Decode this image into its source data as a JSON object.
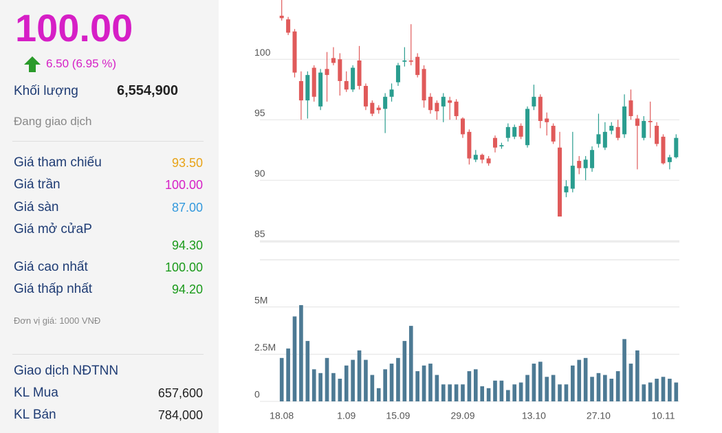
{
  "panel": {
    "price": "100.00",
    "change": "6.50 (6.95 %)",
    "volume_label": "Khối lượng",
    "volume": "6,554,900",
    "status": "Đang giao dịch",
    "prices": [
      {
        "label": "Giá tham chiếu",
        "value": "93.50",
        "color": "#e8a317"
      },
      {
        "label": "Giá trần",
        "value": "100.00",
        "color": "#d61fc6"
      },
      {
        "label": "Giá sàn",
        "value": "87.00",
        "color": "#3399dd"
      },
      {
        "label": "Giá mở cửaP",
        "value": "94.30",
        "color": "#1a9a1a"
      },
      {
        "label": "Giá cao nhất",
        "value": "100.00",
        "color": "#1a9a1a"
      },
      {
        "label": "Giá thấp nhất",
        "value": "94.20",
        "color": "#1a9a1a"
      }
    ],
    "unit_note": "Đơn vị giá: 1000 VNĐ",
    "foreign_title": "Giao dịch NĐTNN",
    "foreign": [
      {
        "label": "KL Mua",
        "value": "657,600"
      },
      {
        "label": "KL Bán",
        "value": "784,000"
      }
    ]
  },
  "chart_data": [
    {
      "type": "candlestick",
      "open": [
        103.6,
        103.3,
        102.3,
        98.2,
        96.6,
        99.3,
        96.1,
        99.2,
        100.1,
        100,
        98.2,
        97.5,
        99.9,
        97.8,
        96.4,
        96,
        95.9,
        96.9,
        98.1,
        99.8,
        99.9,
        100.2,
        99.2,
        96.9,
        96.4,
        96.1,
        96.6,
        96.5,
        95.1,
        94,
        91.7,
        92.1,
        91.8,
        93.5,
        92.8,
        93.5,
        93.6,
        94.5,
        92.9,
        96.1,
        96.9,
        95.1,
        94.5,
        92.7,
        89.0,
        89.3,
        91.6,
        91,
        91,
        93,
        92.7,
        94.1,
        94.4,
        93.8,
        96.6,
        95.1,
        93.5,
        94.9,
        94.5,
        93.6,
        91.5,
        91.9
      ],
      "high": [
        105,
        103.5,
        102.5,
        99,
        99,
        99.5,
        99.2,
        100.6,
        101,
        100.5,
        99,
        99.5,
        101.1,
        98,
        96.6,
        96.2,
        97.2,
        98,
        99.7,
        101,
        102.9,
        100.5,
        99.5,
        97.2,
        96.6,
        97.2,
        96.9,
        96.7,
        95.2,
        94.2,
        92.5,
        92.2,
        92,
        93.7,
        93.1,
        94.7,
        94.6,
        94.7,
        96.1,
        97.9,
        97.1,
        95.6,
        94.7,
        94,
        90,
        94,
        92,
        92,
        92.8,
        95.5,
        94.8,
        94.8,
        95,
        97.1,
        97.5,
        95.4,
        95.3,
        96.5,
        94.8,
        93.8,
        92.1,
        93.8
      ],
      "low": [
        103.2,
        102,
        98.5,
        95,
        95.1,
        96.5,
        95.8,
        96.5,
        99.5,
        97,
        97.3,
        97.3,
        97.5,
        95.8,
        95.3,
        95.5,
        93.9,
        96.5,
        97.8,
        99.4,
        99.5,
        98.5,
        96,
        95.5,
        95,
        94.8,
        95,
        95,
        93.5,
        91.3,
        91.5,
        91.4,
        91.2,
        92.3,
        92.6,
        93.2,
        93.4,
        93.4,
        92.7,
        95.8,
        94.3,
        93.7,
        93,
        87,
        88.6,
        89,
        90.5,
        90,
        90.7,
        92.7,
        92.5,
        93.8,
        93.3,
        93.5,
        95,
        90.9,
        93.3,
        93.5,
        92.8,
        91.3,
        90.9,
        91.8
      ],
      "close": [
        103.4,
        102.2,
        98.9,
        96.6,
        98.7,
        96.9,
        98.9,
        98.7,
        99.7,
        98.2,
        97.5,
        99.3,
        97.8,
        96.1,
        95.5,
        95.8,
        96.9,
        97.5,
        99.5,
        99.9,
        99.8,
        98.7,
        96.6,
        95.8,
        95.7,
        96.9,
        96.4,
        95.3,
        93.8,
        91.8,
        92.1,
        91.7,
        91.4,
        92.7,
        92.9,
        94.4,
        94.4,
        93.6,
        95.9,
        96.9,
        94.9,
        94.8,
        93.2,
        87,
        89.5,
        91.2,
        91,
        91.7,
        92.5,
        93.8,
        94,
        94.5,
        93.5,
        96.1,
        95.3,
        94.5,
        94.9,
        94.8,
        93,
        91.4,
        91.9,
        93.5
      ],
      "up_color": "#2a9d8f",
      "down_color": "#e05a5a",
      "ylim": [
        84.9,
        104.9
      ],
      "yticks": [
        85,
        90,
        95,
        100
      ],
      "grid": true
    },
    {
      "type": "bar",
      "categories": [
        "18.08",
        null,
        null,
        null,
        null,
        null,
        null,
        null,
        null,
        null,
        "1.09",
        null,
        null,
        null,
        null,
        null,
        null,
        null,
        "15.09",
        null,
        null,
        null,
        null,
        null,
        null,
        null,
        null,
        null,
        "29.09",
        null,
        null,
        null,
        null,
        null,
        null,
        null,
        null,
        null,
        null,
        "13.10",
        null,
        null,
        null,
        null,
        null,
        null,
        null,
        null,
        null,
        "27.10",
        null,
        null,
        null,
        null,
        null,
        null,
        null,
        null,
        null,
        "10.11",
        null,
        null
      ],
      "values": [
        2300000,
        2800000,
        4500000,
        5100000,
        3200000,
        1700000,
        1500000,
        2300000,
        1500000,
        1200000,
        1900000,
        2200000,
        2700000,
        2200000,
        1400000,
        700000,
        1700000,
        2000000,
        2300000,
        3200000,
        4000000,
        1600000,
        1900000,
        2000000,
        1400000,
        900000,
        900000,
        900000,
        900000,
        1600000,
        1700000,
        800000,
        700000,
        1100000,
        1100000,
        600000,
        900000,
        1000000,
        1400000,
        2000000,
        2100000,
        1300000,
        1400000,
        900000,
        900000,
        1900000,
        2200000,
        2300000,
        1300000,
        1500000,
        1400000,
        1200000,
        1600000,
        3300000,
        2000000,
        2700000,
        900000,
        1000000,
        1200000,
        1300000,
        1200000,
        1000000
      ],
      "color": "#4d7a94",
      "ylim": [
        0,
        7500000
      ],
      "yticks": [
        0,
        {
          "value": 2500000,
          "label": "2.5M"
        },
        {
          "value": 5000000,
          "label": "5M"
        }
      ],
      "grid": true
    }
  ]
}
